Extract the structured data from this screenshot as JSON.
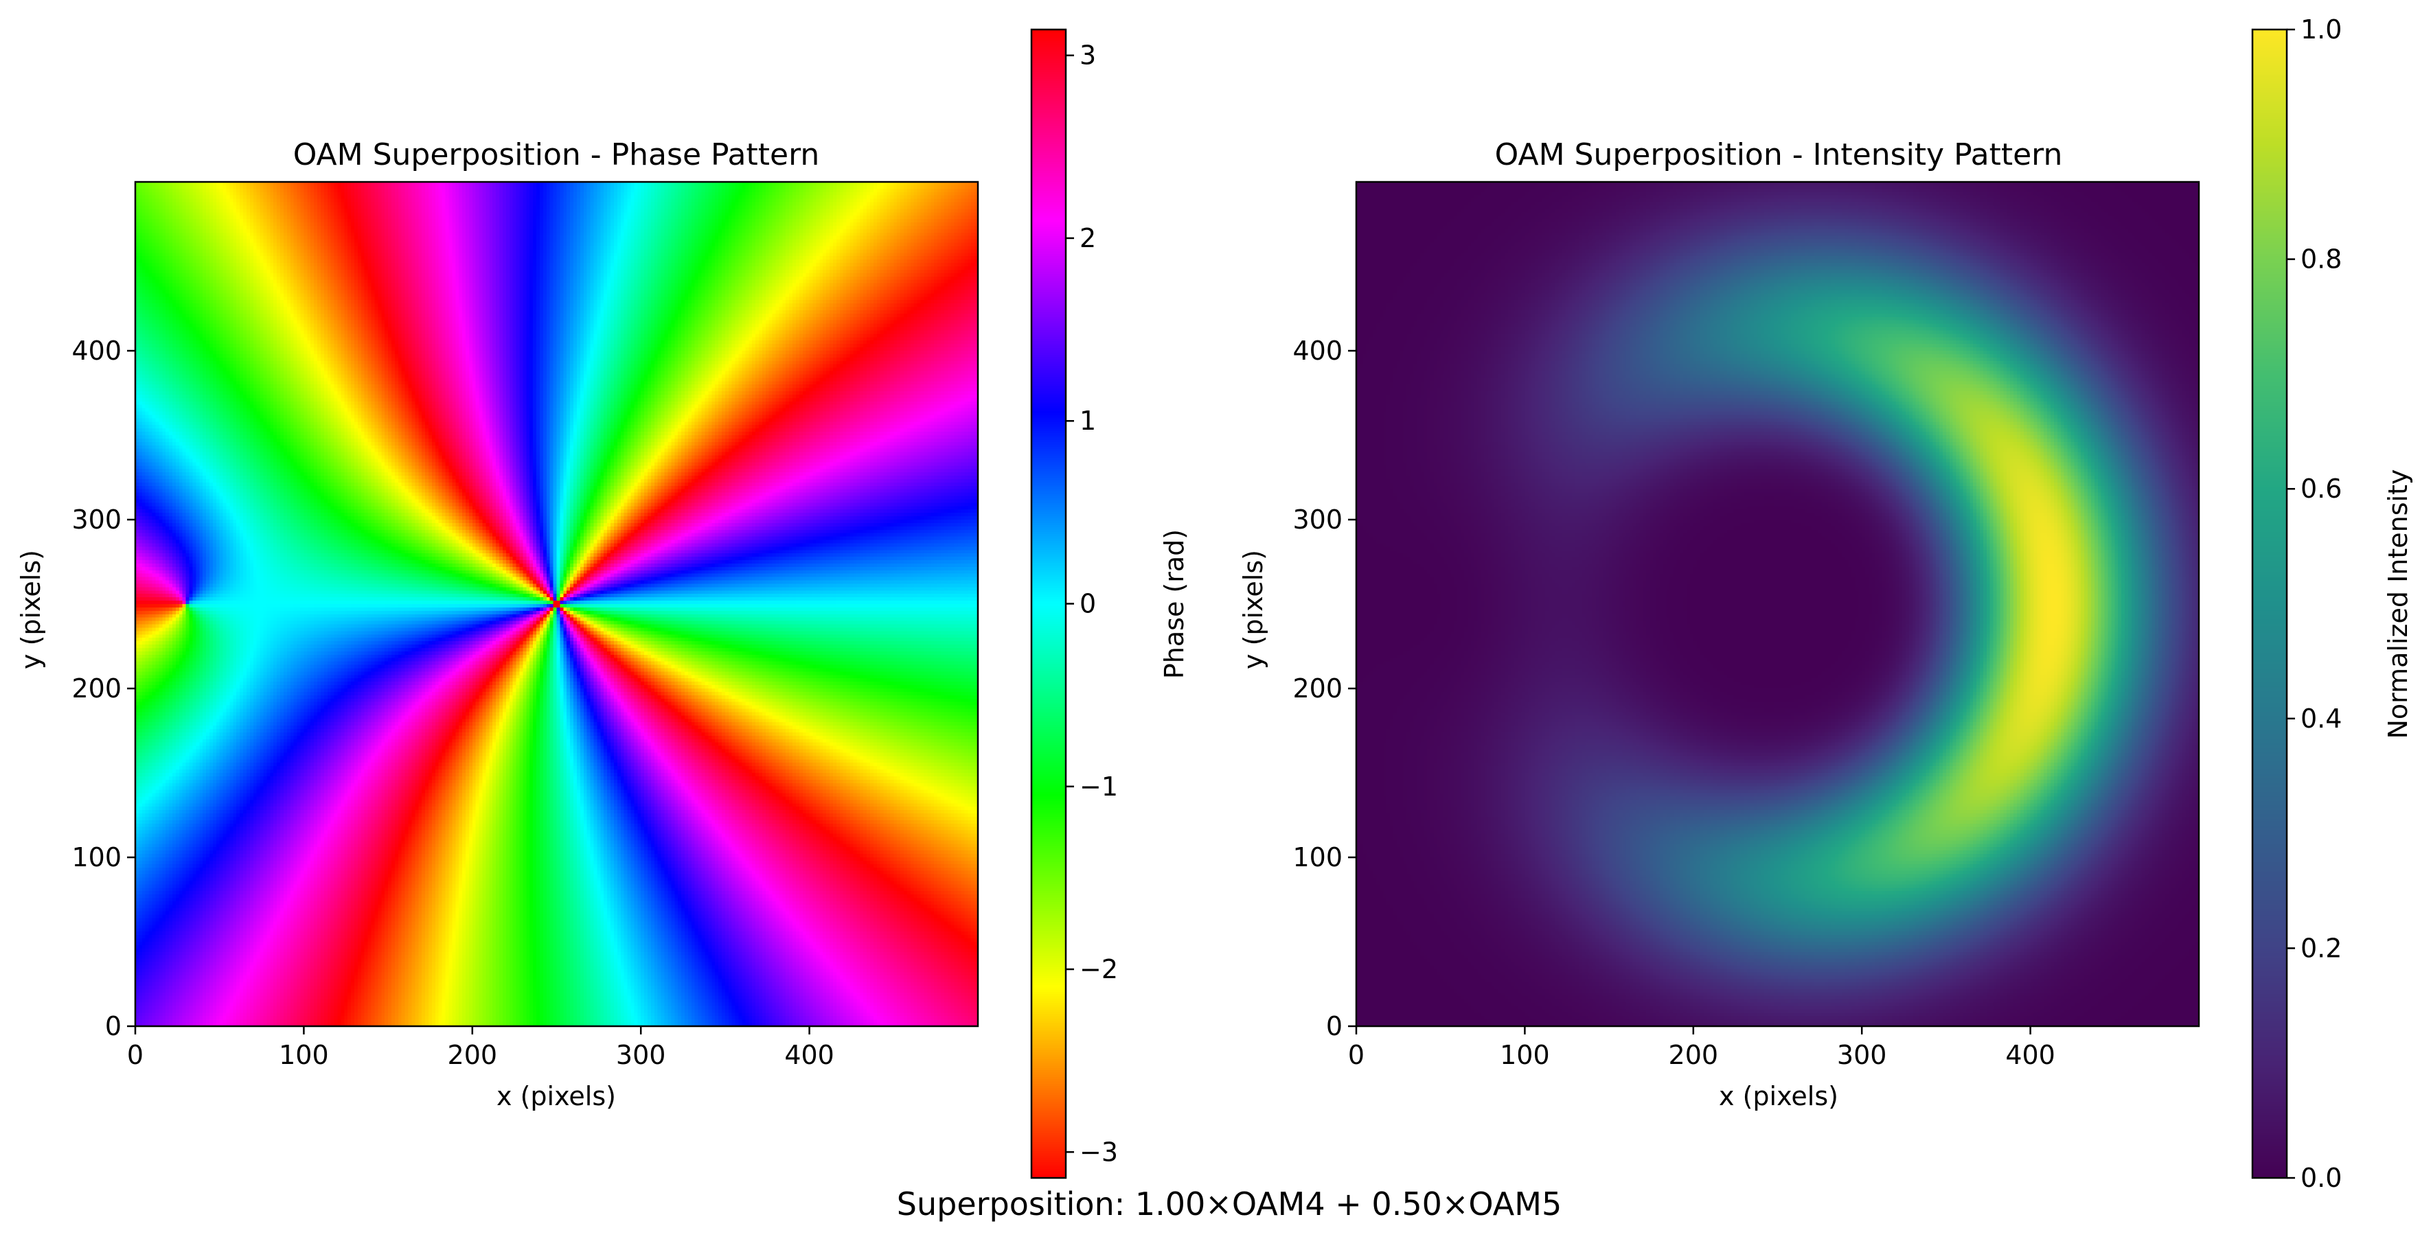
{
  "figure": {
    "suptitle": "Superposition: 1.00×OAM4 + 0.50×OAM5"
  },
  "chart_data": [
    {
      "type": "heatmap",
      "title": "OAM Superposition - Phase Pattern",
      "xlabel": "x (pixels)",
      "ylabel": "y (pixels)",
      "xlim": [
        0,
        500
      ],
      "ylim": [
        0,
        500
      ],
      "xticks": [
        0,
        100,
        200,
        300,
        400
      ],
      "yticks": [
        0,
        100,
        200,
        300,
        400
      ],
      "grid": false,
      "colormap": "hsv",
      "colorbar": {
        "label": "Phase (rad)",
        "range": [
          -3.14159,
          3.14159
        ],
        "ticks": [
          -3,
          -2,
          -1,
          0,
          1,
          2,
          3
        ],
        "tick_labels": [
          "−3",
          "−2",
          "−1",
          "0",
          "1",
          "2",
          "3"
        ]
      },
      "field": {
        "grid_size": 500,
        "center": [
          250,
          250
        ],
        "components": [
          {
            "l": 4,
            "amplitude": 1.0
          },
          {
            "l": 5,
            "amplitude": 0.5
          }
        ],
        "quantity": "phase"
      }
    },
    {
      "type": "heatmap",
      "title": "OAM Superposition - Intensity Pattern",
      "xlabel": "x (pixels)",
      "ylabel": "y (pixels)",
      "xlim": [
        0,
        500
      ],
      "ylim": [
        0,
        500
      ],
      "xticks": [
        0,
        100,
        200,
        300,
        400
      ],
      "yticks": [
        0,
        100,
        200,
        300,
        400
      ],
      "grid": false,
      "colormap": "viridis",
      "colorbar": {
        "label": "Normalized Intensity",
        "range": [
          0.0,
          1.0
        ],
        "ticks": [
          0.0,
          0.2,
          0.4,
          0.6,
          0.8,
          1.0
        ],
        "tick_labels": [
          "0.0",
          "0.2",
          "0.4",
          "0.6",
          "0.8",
          "1.0"
        ]
      },
      "field": {
        "grid_size": 500,
        "center": [
          250,
          250
        ],
        "components": [
          {
            "l": 4,
            "amplitude": 1.0
          },
          {
            "l": 5,
            "amplitude": 0.5
          }
        ],
        "quantity": "intensity"
      }
    }
  ]
}
